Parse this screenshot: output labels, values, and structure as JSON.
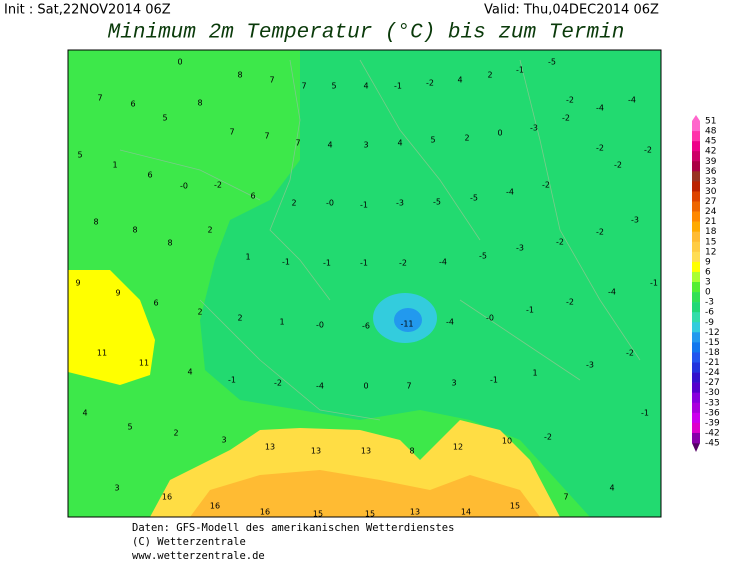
{
  "header": {
    "init": "Init : Sat,22NOV2014 06Z",
    "valid": "Valid: Thu,04DEC2014 06Z",
    "title": "Minimum 2m Temperatur (°C) bis zum Termin"
  },
  "map": {
    "labels": [
      "0",
      "8",
      "7",
      "7",
      "5",
      "4",
      "-1",
      "-2",
      "4",
      "2",
      "-1",
      "-5",
      "7",
      "6",
      "8",
      "-2",
      "-4",
      "-4",
      "5",
      "7",
      "7",
      "7",
      "4",
      "3",
      "4",
      "5",
      "2",
      "0",
      "-3",
      "-2",
      "5",
      "1",
      "-2",
      "-2",
      "6",
      "-0",
      "-2",
      "-2",
      "6",
      "2",
      "-0",
      "-1",
      "-3",
      "-5",
      "-5",
      "-4",
      "-2",
      "8",
      "8",
      "2",
      "-2",
      "-3",
      "8",
      "1",
      "-1",
      "-1",
      "-1",
      "-2",
      "-4",
      "-5",
      "-3",
      "-2",
      "9",
      "9",
      "6",
      "2",
      "2",
      "1",
      "-0",
      "-6",
      "-11",
      "-4",
      "-0",
      "-1",
      "-2",
      "-4",
      "-1",
      "11",
      "11",
      "4",
      "-1",
      "-2",
      "-4",
      "0",
      "7",
      "3",
      "-1",
      "1",
      "-3",
      "-2",
      "4",
      "5",
      "2",
      "3",
      "13",
      "13",
      "13",
      "8",
      "12",
      "10",
      "-2",
      "-1",
      "3",
      "16",
      "16",
      "16",
      "15",
      "15",
      "13",
      "14",
      "15",
      "7",
      "4"
    ]
  },
  "legend": {
    "labels": [
      51,
      48,
      45,
      42,
      39,
      36,
      33,
      30,
      27,
      24,
      21,
      18,
      15,
      12,
      9,
      6,
      3,
      0,
      -3,
      -6,
      -9,
      -12,
      -15,
      -18,
      -21,
      -24,
      -27,
      -30,
      -33,
      -36,
      -39,
      -42,
      -45
    ],
    "colors": [
      "#ff66cc",
      "#ff33aa",
      "#ee0088",
      "#cc0066",
      "#aa0044",
      "#993322",
      "#bb2200",
      "#dd4400",
      "#ee6600",
      "#ff8800",
      "#ffaa00",
      "#ffbb33",
      "#ffcc44",
      "#ffdd55",
      "#ffff00",
      "#aaff33",
      "#55ee33",
      "#33e055",
      "#22d877",
      "#33ddaa",
      "#33ccdd",
      "#2299ee",
      "#1177ee",
      "#2255ee",
      "#2233dd",
      "#3311cc",
      "#5500cc",
      "#8800dd",
      "#aa00dd",
      "#cc00ee",
      "#dd00cc",
      "#8800aa"
    ]
  },
  "footer": {
    "lines": [
      "Daten: GFS-Modell des amerikanischen Wetterdienstes",
      "(C) Wetterzentrale",
      "www.wetterzentrale.de"
    ]
  }
}
